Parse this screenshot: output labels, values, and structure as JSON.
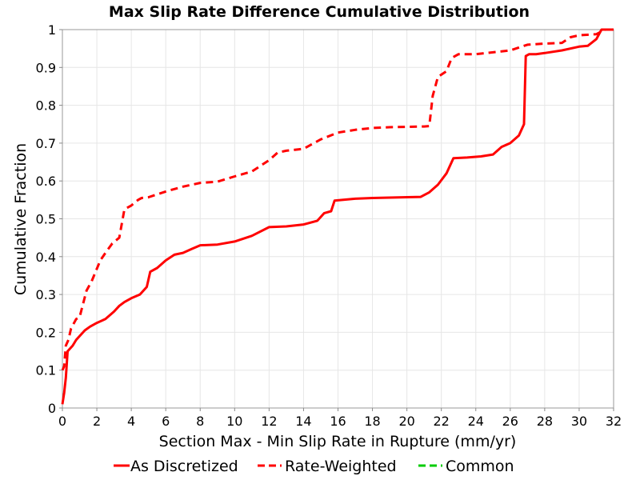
{
  "chart_data": {
    "type": "line",
    "title": "Max Slip Rate Difference Cumulative Distribution",
    "xlabel": "Section Max - Min Slip Rate in Rupture (mm/yr)",
    "ylabel": "Cumulative Fraction",
    "xlim": [
      0,
      32
    ],
    "ylim": [
      0,
      1
    ],
    "xticks": [
      "0",
      "2",
      "4",
      "6",
      "8",
      "10",
      "12",
      "14",
      "16",
      "18",
      "20",
      "22",
      "24",
      "26",
      "28",
      "30",
      "32"
    ],
    "yticks": [
      "0",
      "0.1",
      "0.2",
      "0.3",
      "0.4",
      "0.5",
      "0.6",
      "0.7",
      "0.8",
      "0.9",
      "1"
    ],
    "grid": true,
    "legend_position": "bottom",
    "series": [
      {
        "name": "As Discretized",
        "color": "#ff0000",
        "dash": "solid",
        "x": [
          0,
          0.1,
          0.2,
          0.3,
          0.4,
          0.6,
          0.8,
          1.0,
          1.3,
          1.6,
          2.0,
          2.5,
          3.0,
          3.3,
          3.6,
          4.0,
          4.5,
          4.9,
          5.1,
          5.5,
          6.0,
          6.5,
          7.0,
          7.5,
          8.0,
          9.0,
          10.0,
          11.0,
          12.0,
          13.0,
          14.0,
          14.8,
          15.2,
          15.6,
          15.8,
          17.0,
          18.0,
          19.0,
          20.0,
          20.8,
          21.3,
          21.8,
          22.3,
          22.7,
          23.5,
          24.3,
          25.0,
          25.5,
          26.0,
          26.5,
          26.8,
          26.9,
          27.1,
          27.5,
          28.0,
          29.0,
          30.0,
          30.5,
          31.0,
          31.3,
          31.5,
          32.0
        ],
        "y": [
          0.01,
          0.04,
          0.08,
          0.15,
          0.155,
          0.165,
          0.18,
          0.19,
          0.205,
          0.215,
          0.225,
          0.235,
          0.255,
          0.27,
          0.28,
          0.29,
          0.3,
          0.32,
          0.36,
          0.37,
          0.39,
          0.405,
          0.41,
          0.42,
          0.43,
          0.432,
          0.44,
          0.455,
          0.478,
          0.48,
          0.485,
          0.495,
          0.515,
          0.52,
          0.548,
          0.553,
          0.555,
          0.556,
          0.557,
          0.558,
          0.57,
          0.59,
          0.62,
          0.66,
          0.662,
          0.665,
          0.67,
          0.69,
          0.7,
          0.72,
          0.75,
          0.93,
          0.935,
          0.935,
          0.938,
          0.945,
          0.955,
          0.957,
          0.975,
          1.0,
          1.0,
          1.0
        ]
      },
      {
        "name": "Rate-Weighted",
        "color": "#ff0000",
        "dash": "dashed",
        "x": [
          0,
          0.1,
          0.2,
          0.35,
          0.5,
          0.8,
          1.0,
          1.4,
          1.7,
          2.2,
          2.5,
          2.9,
          3.3,
          3.6,
          4.0,
          4.4,
          4.6,
          5.0,
          6.0,
          7.0,
          8.0,
          9.0,
          10.0,
          11.0,
          12.0,
          12.5,
          13.0,
          14.0,
          15.0,
          16.0,
          17.0,
          18.0,
          19.0,
          20.0,
          21.0,
          21.3,
          21.5,
          21.8,
          22.3,
          22.6,
          23.0,
          24.0,
          25.0,
          26.0,
          27.0,
          28.0,
          29.0,
          29.5,
          30.0,
          31.0,
          31.5,
          32.0
        ],
        "y": [
          0.1,
          0.11,
          0.165,
          0.18,
          0.21,
          0.235,
          0.24,
          0.31,
          0.335,
          0.39,
          0.41,
          0.435,
          0.45,
          0.525,
          0.535,
          0.55,
          0.555,
          0.557,
          0.572,
          0.585,
          0.595,
          0.598,
          0.612,
          0.625,
          0.655,
          0.675,
          0.68,
          0.685,
          0.71,
          0.728,
          0.735,
          0.74,
          0.742,
          0.743,
          0.744,
          0.745,
          0.825,
          0.875,
          0.89,
          0.925,
          0.935,
          0.935,
          0.94,
          0.945,
          0.96,
          0.963,
          0.965,
          0.98,
          0.985,
          0.988,
          1.0,
          1.0
        ]
      }
    ],
    "legend": [
      {
        "label": "As Discretized",
        "color": "#ff0000",
        "dash": "solid"
      },
      {
        "label": "Rate-Weighted",
        "color": "#ff0000",
        "dash": "dashed"
      },
      {
        "label": "Common",
        "color": "#00cc00",
        "dash": "dashed"
      }
    ]
  }
}
